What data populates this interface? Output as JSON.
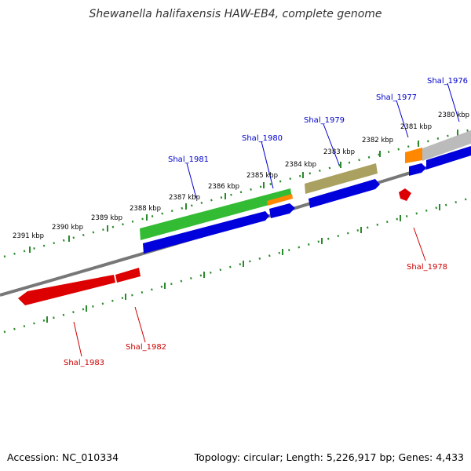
{
  "title": "Shewanella halifaxensis HAW-EB4, complete genome",
  "footer": {
    "accession": "Accession: NC_010334",
    "summary": "Topology: circular; Length: 5,226,917 bp; Genes: 4,433"
  },
  "scale_labels": [
    "2380 kbp",
    "2381 kbp",
    "2382 kbp",
    "2383 kbp",
    "2384 kbp",
    "2385 kbp",
    "2386 kbp",
    "2387 kbp",
    "2388 kbp",
    "2389 kbp",
    "2390 kbp",
    "2391 kbp"
  ],
  "gene_labels": {
    "forward": [
      "Shal_1976",
      "Shal_1977",
      "Shal_1979",
      "Shal_1980",
      "Shal_1981"
    ],
    "reverse": [
      "Shal_1978",
      "Shal_1982",
      "Shal_1983"
    ]
  },
  "colors": {
    "forward_label": "#0000cc",
    "reverse_label": "#cc0000",
    "cds_blue": "#0000dd",
    "cds_red": "#dd0000",
    "track_green": "#33bb33",
    "track_orange": "#ff8800",
    "track_olive": "#aaa060",
    "track_gray": "#bbbbbb",
    "tick_green": "#2a8a2a",
    "backbone": "#777777"
  }
}
